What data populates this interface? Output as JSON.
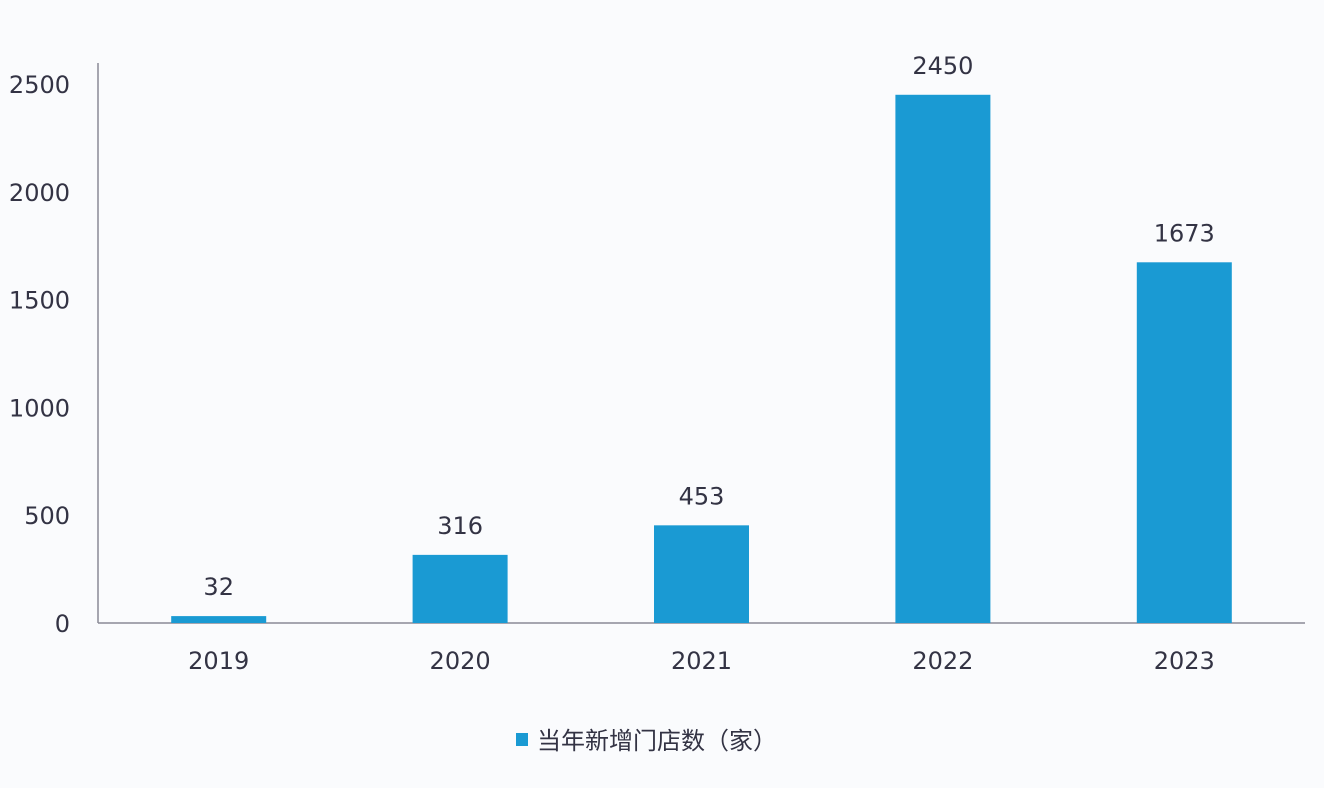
{
  "chart_data": {
    "type": "bar",
    "title": "",
    "xlabel": "",
    "ylabel": "",
    "categories": [
      "2019",
      "2020",
      "2021",
      "2022",
      "2023"
    ],
    "series": [
      {
        "name": "当年新增门店数（家）",
        "values": [
          32,
          316,
          453,
          2450,
          1673
        ],
        "color": "#1a9ad3"
      }
    ],
    "ylim": [
      0,
      2500
    ],
    "yticks": [
      "0",
      "500",
      "1000",
      "1500",
      "2000",
      "2500"
    ],
    "data_labels": [
      "32",
      "316",
      "453",
      "2450",
      "1673"
    ],
    "grid": false,
    "legend": {
      "placement": "bottom",
      "label": "当年新增门店数（家）"
    }
  }
}
